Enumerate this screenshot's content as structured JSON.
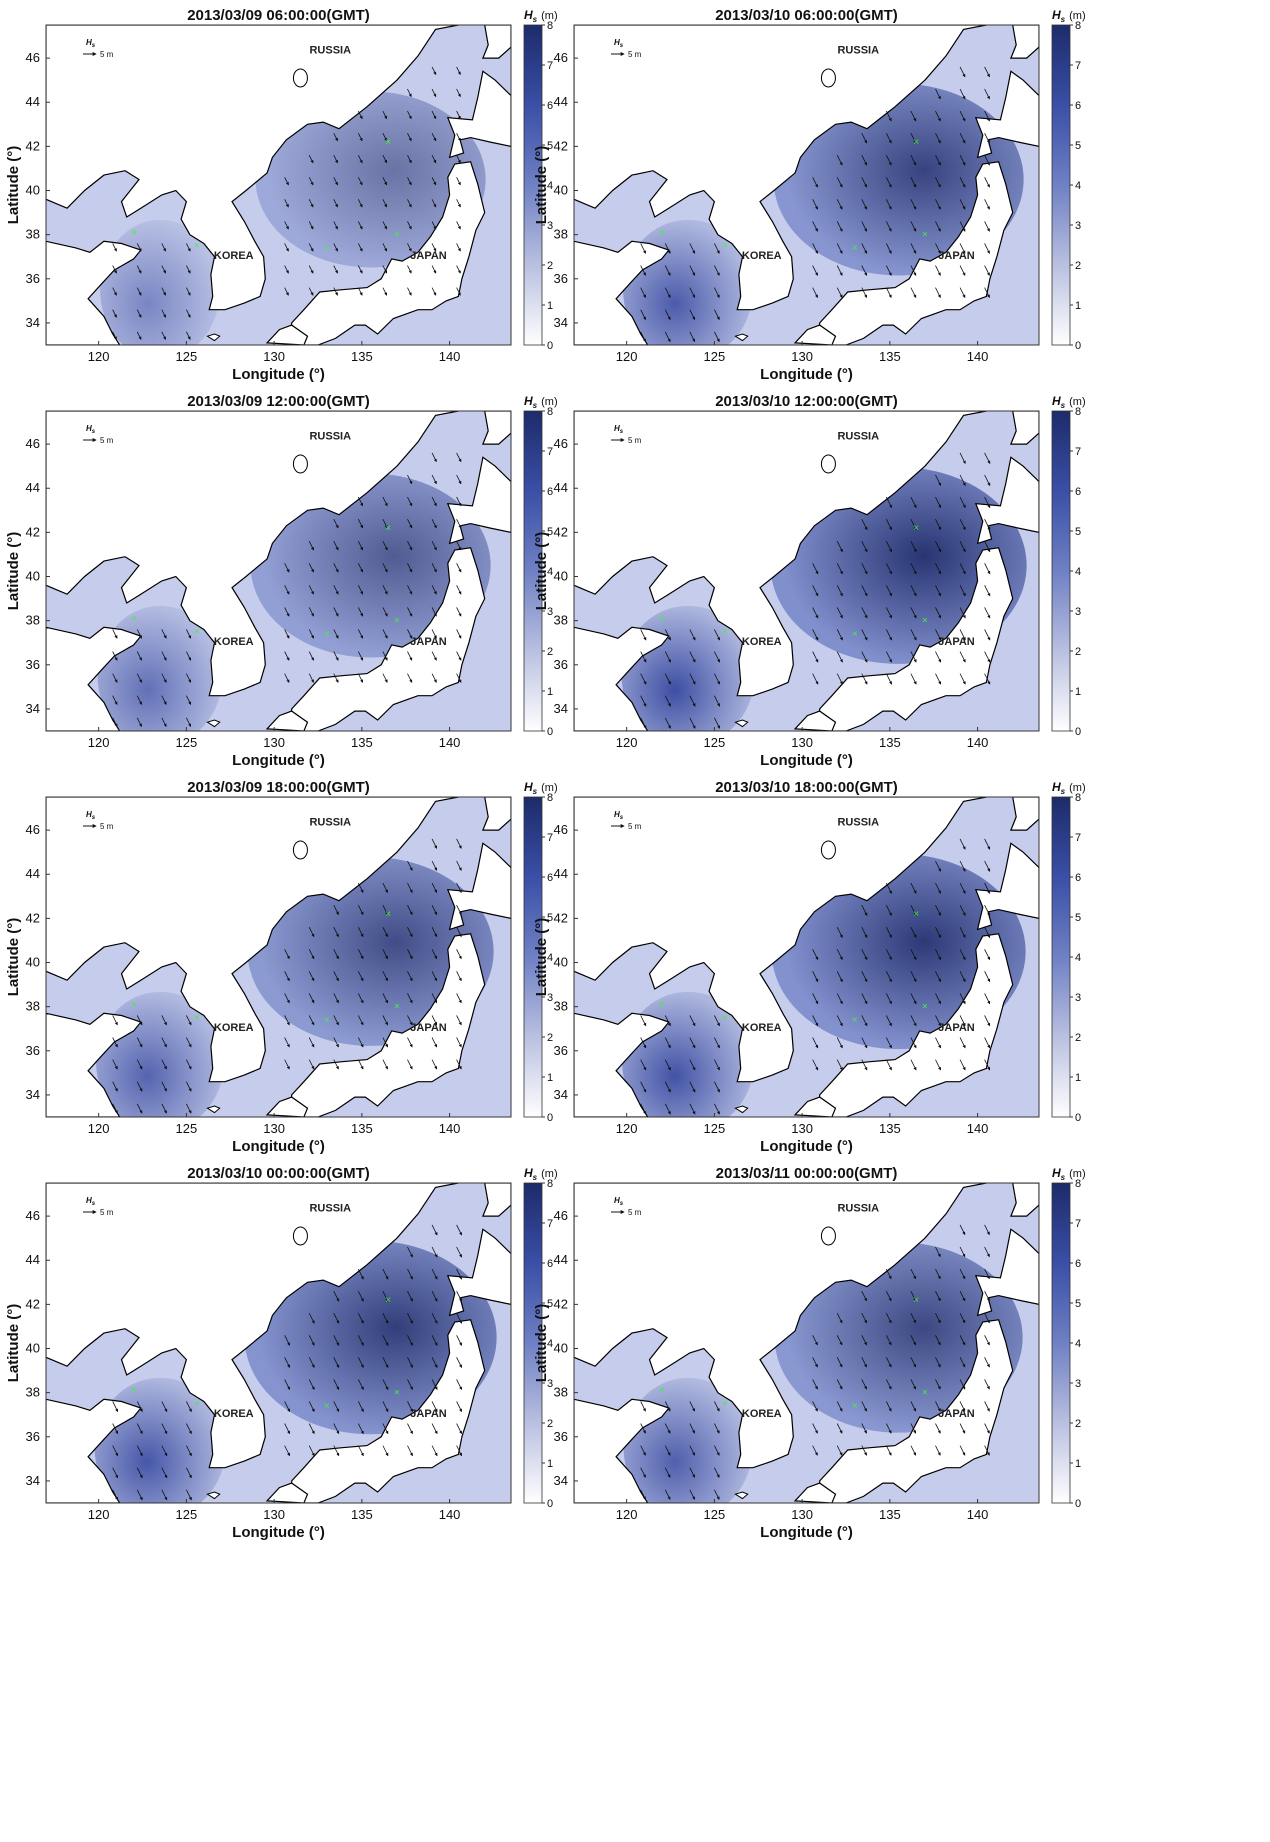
{
  "figure": {
    "panels": [
      {
        "title": "2013/03/09 06:00:00(GMT)",
        "intensity": 1.0
      },
      {
        "title": "2013/03/10 06:00:00(GMT)",
        "intensity": 2.0
      },
      {
        "title": "2013/03/09 12:00:00(GMT)",
        "intensity": 1.5
      },
      {
        "title": "2013/03/10 12:00:00(GMT)",
        "intensity": 2.3
      },
      {
        "title": "2013/03/09 18:00:00(GMT)",
        "intensity": 1.8
      },
      {
        "title": "2013/03/10 18:00:00(GMT)",
        "intensity": 2.2
      },
      {
        "title": "2013/03/10 00:00:00(GMT)",
        "intensity": 2.1
      },
      {
        "title": "2013/03/11 00:00:00(GMT)",
        "intensity": 1.9
      }
    ],
    "xlabel": "Longitude (°)",
    "ylabel": "Latitude (°)",
    "region_labels": {
      "russia": "RUSSIA",
      "korea": "KOREA",
      "japan": "JAPAN"
    },
    "legend": {
      "symbol": "H",
      "subscript": "s",
      "arrow_label": "5 m"
    },
    "colorbar": {
      "symbol": "H",
      "subscript": "s",
      "unit": "(m)"
    },
    "colors": {
      "low": "#ffffff",
      "high": "#1d2b6b",
      "land_outline": "#000000",
      "marker": "#44ee44"
    }
  },
  "chart_data": {
    "type": "heatmap",
    "panel_titles": [
      "2013/03/09 06:00:00(GMT)",
      "2013/03/10 06:00:00(GMT)",
      "2013/03/09 12:00:00(GMT)",
      "2013/03/10 12:00:00(GMT)",
      "2013/03/09 18:00:00(GMT)",
      "2013/03/10 18:00:00(GMT)",
      "2013/03/10 00:00:00(GMT)",
      "2013/03/11 00:00:00(GMT)"
    ],
    "xlabel": "Longitude (°)",
    "ylabel": "Latitude (°)",
    "xlim": [
      117,
      143.5
    ],
    "ylim": [
      33,
      47.5
    ],
    "x_ticks": [
      120,
      125,
      130,
      135,
      140
    ],
    "y_ticks": [
      34,
      36,
      38,
      40,
      42,
      44,
      46
    ],
    "colorbar": {
      "label": "Hs (m)",
      "min": 0,
      "max": 8,
      "ticks": [
        0,
        1,
        2,
        3,
        4,
        5,
        6,
        7,
        8
      ]
    },
    "reference_vector": "5 m",
    "annotations": [
      "RUSSIA",
      "KOREA",
      "JAPAN"
    ]
  }
}
